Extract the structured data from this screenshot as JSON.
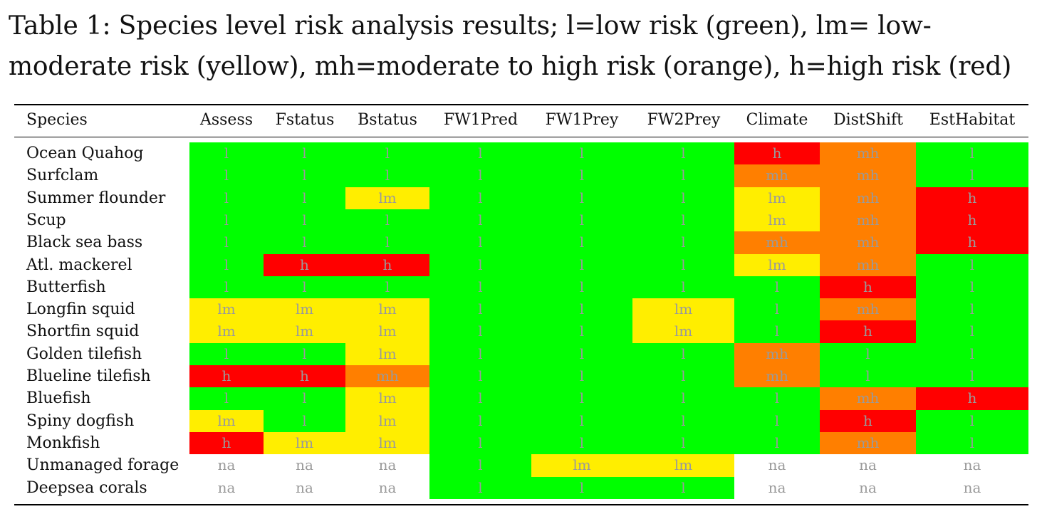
{
  "caption": "Table 1: Species level risk analysis results; l=low risk (green), lm= low-moderate risk (yellow), mh=moderate to high risk (orange), h=high risk (red)",
  "colors": {
    "l": "#00ff00",
    "lm": "#ffee00",
    "mh": "#ff7f00",
    "h": "#ff0000"
  },
  "columns": [
    "Species",
    "Assess",
    "Fstatus",
    "Bstatus",
    "FW1Pred",
    "FW1Prey",
    "FW2Prey",
    "Climate",
    "DistShift",
    "EstHabitat"
  ],
  "rows": [
    {
      "species": "Ocean Quahog",
      "values": [
        "l",
        "l",
        "l",
        "l",
        "l",
        "l",
        "h",
        "mh",
        "l"
      ]
    },
    {
      "species": "Surfclam",
      "values": [
        "l",
        "l",
        "l",
        "l",
        "l",
        "l",
        "mh",
        "mh",
        "l"
      ]
    },
    {
      "species": "Summer flounder",
      "values": [
        "l",
        "l",
        "lm",
        "l",
        "l",
        "l",
        "lm",
        "mh",
        "h"
      ]
    },
    {
      "species": "Scup",
      "values": [
        "l",
        "l",
        "l",
        "l",
        "l",
        "l",
        "lm",
        "mh",
        "h"
      ]
    },
    {
      "species": "Black sea bass",
      "values": [
        "l",
        "l",
        "l",
        "l",
        "l",
        "l",
        "mh",
        "mh",
        "h"
      ]
    },
    {
      "species": "Atl. mackerel",
      "values": [
        "l",
        "h",
        "h",
        "l",
        "l",
        "l",
        "lm",
        "mh",
        "l"
      ]
    },
    {
      "species": "Butterfish",
      "values": [
        "l",
        "l",
        "l",
        "l",
        "l",
        "l",
        "l",
        "h",
        "l"
      ]
    },
    {
      "species": "Longfin squid",
      "values": [
        "lm",
        "lm",
        "lm",
        "l",
        "l",
        "lm",
        "l",
        "mh",
        "l"
      ]
    },
    {
      "species": "Shortfin squid",
      "values": [
        "lm",
        "lm",
        "lm",
        "l",
        "l",
        "lm",
        "l",
        "h",
        "l"
      ]
    },
    {
      "species": "Golden tilefish",
      "values": [
        "l",
        "l",
        "lm",
        "l",
        "l",
        "l",
        "mh",
        "l",
        "l"
      ]
    },
    {
      "species": "Blueline tilefish",
      "values": [
        "h",
        "h",
        "mh",
        "l",
        "l",
        "l",
        "mh",
        "l",
        "l"
      ]
    },
    {
      "species": "Bluefish",
      "values": [
        "l",
        "l",
        "lm",
        "l",
        "l",
        "l",
        "l",
        "mh",
        "h"
      ]
    },
    {
      "species": "Spiny dogfish",
      "values": [
        "lm",
        "l",
        "lm",
        "l",
        "l",
        "l",
        "l",
        "h",
        "l"
      ]
    },
    {
      "species": "Monkfish",
      "values": [
        "h",
        "lm",
        "lm",
        "l",
        "l",
        "l",
        "l",
        "mh",
        "l"
      ]
    },
    {
      "species": "Unmanaged forage",
      "values": [
        "na",
        "na",
        "na",
        "l",
        "lm",
        "lm",
        "na",
        "na",
        "na"
      ]
    },
    {
      "species": "Deepsea corals",
      "values": [
        "na",
        "na",
        "na",
        "l",
        "l",
        "l",
        "na",
        "na",
        "na"
      ]
    }
  ]
}
